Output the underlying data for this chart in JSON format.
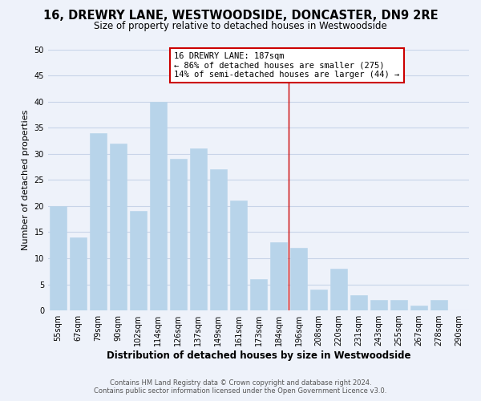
{
  "title": "16, DREWRY LANE, WESTWOODSIDE, DONCASTER, DN9 2RE",
  "subtitle": "Size of property relative to detached houses in Westwoodside",
  "xlabel": "Distribution of detached houses by size in Westwoodside",
  "ylabel": "Number of detached properties",
  "bar_labels": [
    "55sqm",
    "67sqm",
    "79sqm",
    "90sqm",
    "102sqm",
    "114sqm",
    "126sqm",
    "137sqm",
    "149sqm",
    "161sqm",
    "173sqm",
    "184sqm",
    "196sqm",
    "208sqm",
    "220sqm",
    "231sqm",
    "243sqm",
    "255sqm",
    "267sqm",
    "278sqm",
    "290sqm"
  ],
  "bar_values": [
    20,
    14,
    34,
    32,
    19,
    40,
    29,
    31,
    27,
    21,
    6,
    13,
    12,
    4,
    8,
    3,
    2,
    2,
    1,
    2,
    0
  ],
  "bar_color": "#b8d4ea",
  "bar_edge_color": "#b8d4ea",
  "grid_color": "#c8d4e8",
  "background_color": "#eef2fa",
  "vline_x_index": 11.5,
  "vline_color": "#cc0000",
  "annotation_title": "16 DREWRY LANE: 187sqm",
  "annotation_line1": "← 86% of detached houses are smaller (275)",
  "annotation_line2": "14% of semi-detached houses are larger (44) →",
  "annotation_box_color": "white",
  "annotation_box_edge": "#cc0000",
  "ylim": [
    0,
    50
  ],
  "yticks": [
    0,
    5,
    10,
    15,
    20,
    25,
    30,
    35,
    40,
    45,
    50
  ],
  "footer1": "Contains HM Land Registry data © Crown copyright and database right 2024.",
  "footer2": "Contains public sector information licensed under the Open Government Licence v3.0.",
  "title_fontsize": 10.5,
  "subtitle_fontsize": 8.5,
  "xlabel_fontsize": 8.5,
  "ylabel_fontsize": 8,
  "tick_fontsize": 7,
  "footer_fontsize": 6,
  "ann_fontsize": 7.5
}
